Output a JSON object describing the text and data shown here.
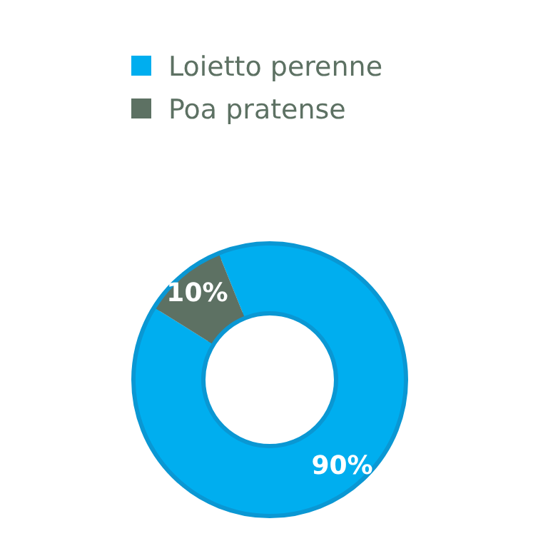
{
  "chart_data": {
    "type": "donut",
    "categories": [
      "Loietto perenne",
      "Poa pratense"
    ],
    "values": [
      90,
      10
    ],
    "colors": [
      "#00aeef",
      "#5d7163"
    ],
    "value_labels": [
      "90%",
      "10%"
    ],
    "legend": "top"
  }
}
